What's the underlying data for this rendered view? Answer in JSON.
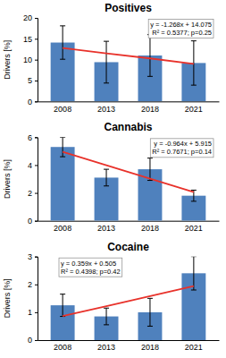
{
  "chart_data": [
    {
      "type": "bar",
      "title": "Positives",
      "y_label": "Drivers [%]",
      "categories": [
        "2008",
        "2013",
        "2018",
        "2021"
      ],
      "ylim": [
        0,
        20
      ],
      "yticks": [
        0,
        5,
        10,
        15,
        20
      ],
      "series": [
        {
          "type": "bar",
          "color": "#4f81bd",
          "values": [
            14.1,
            9.4,
            11.0,
            9.2
          ],
          "errors": [
            4.0,
            5.0,
            5.0,
            5.3
          ]
        },
        {
          "type": "line",
          "color": "#e8322b",
          "values": [
            12.8,
            11.5,
            10.3,
            9.0
          ]
        }
      ],
      "annotations": [
        "y = -1.268x + 14.075",
        "R² = 0.5377; p=0.25"
      ]
    },
    {
      "type": "bar",
      "title": "Cannabis",
      "y_label": "Drivers [%]",
      "categories": [
        "2008",
        "2013",
        "2018",
        "2021"
      ],
      "ylim": [
        0,
        6
      ],
      "yticks": [
        0,
        2,
        4,
        6
      ],
      "series": [
        {
          "type": "bar",
          "color": "#4f81bd",
          "values": [
            5.3,
            3.1,
            3.7,
            1.8
          ],
          "errors": [
            0.7,
            0.6,
            0.8,
            0.4
          ]
        },
        {
          "type": "line",
          "color": "#e8322b",
          "values": [
            4.95,
            3.99,
            3.02,
            2.06
          ]
        }
      ],
      "annotations": [
        "y = -0.964x + 5.915",
        "R² = 0.7671; p=0.14"
      ]
    },
    {
      "type": "bar",
      "title": "Cocaine",
      "y_label": "Drivers [%]",
      "categories": [
        "2008",
        "2013",
        "2018",
        "2021"
      ],
      "ylim": [
        0,
        3
      ],
      "yticks": [
        0,
        1,
        2,
        3
      ],
      "series": [
        {
          "type": "bar",
          "color": "#4f81bd",
          "values": [
            1.25,
            0.85,
            1.0,
            2.4
          ],
          "errors": [
            0.4,
            0.3,
            0.5,
            0.6
          ]
        },
        {
          "type": "line",
          "color": "#e8322b",
          "values": [
            0.86,
            1.22,
            1.58,
            1.94
          ]
        }
      ],
      "annotations": [
        "y = 0.359x + 0.505",
        "R² = 0.4398; p=0.42"
      ]
    }
  ]
}
